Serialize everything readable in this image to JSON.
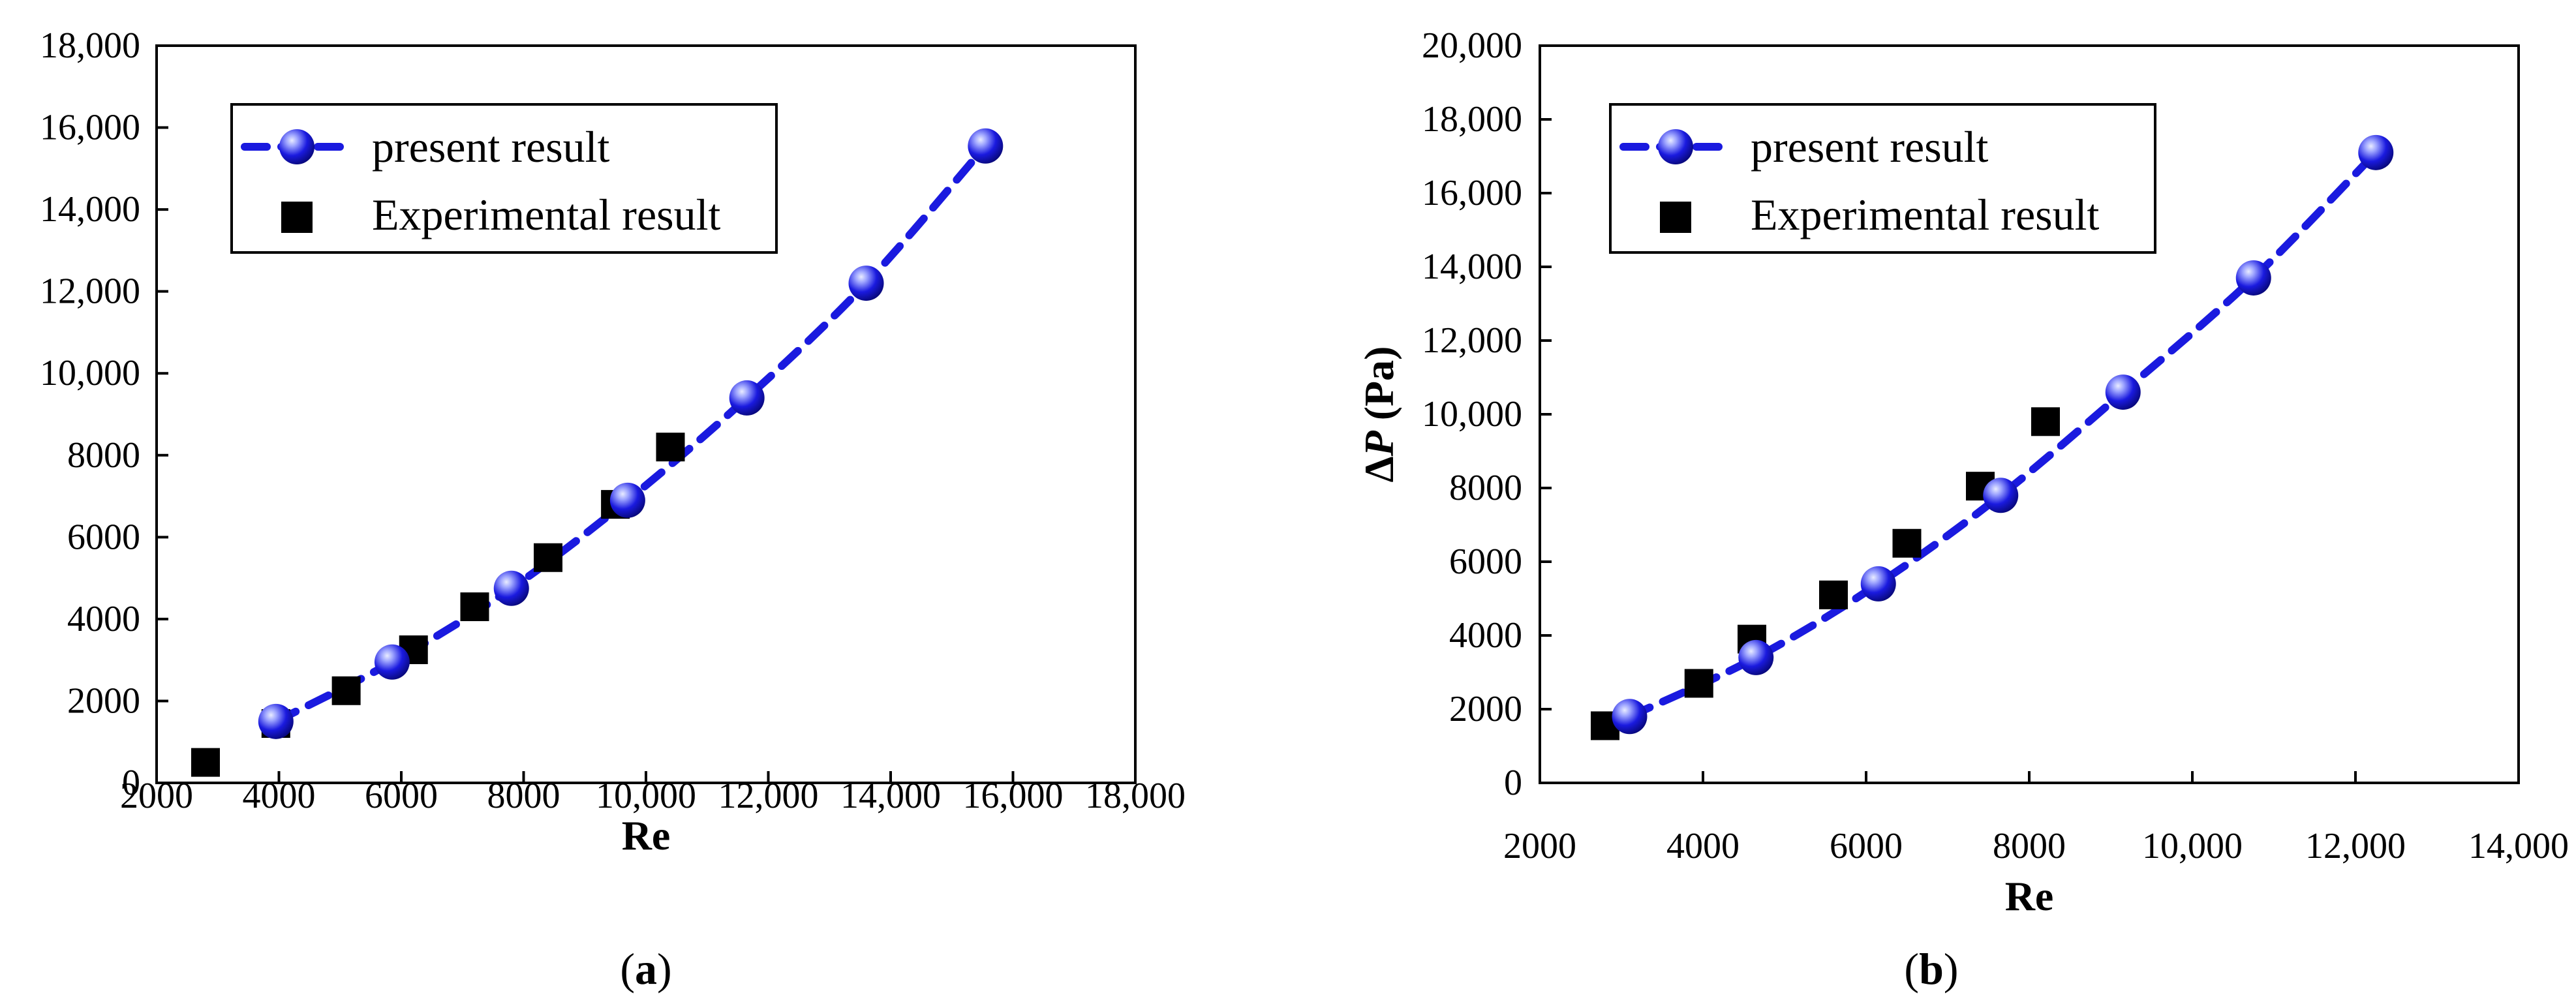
{
  "colors": {
    "present": "#1a1adf",
    "present_highlight": "#9fa6ff",
    "experimental": "#000000"
  },
  "panels": [
    {
      "label_open": "(",
      "label_letter": "a",
      "label_close": ")",
      "chart_data": {
        "type": "scatter",
        "title": "",
        "xlabel": "Re",
        "ylabel": "",
        "xlim": [
          2000,
          18000
        ],
        "ylim": [
          0,
          18000
        ],
        "xticks": [
          2000,
          4000,
          6000,
          8000,
          10000,
          12000,
          14000,
          16000,
          18000
        ],
        "xtick_labels": [
          "2000",
          "4000",
          "6000",
          "8000",
          "10,000",
          "12,000",
          "14,000",
          "16,000",
          "18,000"
        ],
        "yticks": [
          0,
          2000,
          4000,
          6000,
          8000,
          10000,
          12000,
          14000,
          16000,
          18000
        ],
        "ytick_labels": [
          "0",
          "2000",
          "4000",
          "6000",
          "8000",
          "10,000",
          "12,000",
          "14,000",
          "16,000",
          "18,000"
        ],
        "legend_position": "top-left",
        "series": [
          {
            "name": "present result",
            "style": "dashed line with sphere markers",
            "points": [
              [
                3950,
                1500
              ],
              [
                5850,
                2950
              ],
              [
                7800,
                4750
              ],
              [
                9700,
                6900
              ],
              [
                11650,
                9400
              ],
              [
                13600,
                12200
              ],
              [
                15550,
                15550
              ]
            ]
          },
          {
            "name": "Experimental result",
            "style": "square markers",
            "points": [
              [
                2800,
                500
              ],
              [
                3950,
                1450
              ],
              [
                5100,
                2250
              ],
              [
                6200,
                3250
              ],
              [
                7200,
                4300
              ],
              [
                8400,
                5500
              ],
              [
                9500,
                6800
              ],
              [
                10400,
                8200
              ]
            ]
          }
        ]
      }
    },
    {
      "label_open": "(",
      "label_letter": "b",
      "label_close": ")",
      "chart_data": {
        "type": "scatter",
        "title": "",
        "xlabel": "Re",
        "ylabel_prefix": "Δ",
        "ylabel_var": "P",
        "ylabel_suffix": " (Pa)",
        "xlim": [
          2000,
          14000
        ],
        "ylim": [
          0,
          20000
        ],
        "xticks": [
          2000,
          4000,
          6000,
          8000,
          10000,
          12000,
          14000
        ],
        "xtick_labels": [
          "2000",
          "4000",
          "6000",
          "8000",
          "10,000",
          "12,000",
          "14,000"
        ],
        "yticks": [
          0,
          2000,
          4000,
          6000,
          8000,
          10000,
          12000,
          14000,
          16000,
          18000,
          20000
        ],
        "ytick_labels": [
          "0",
          "2000",
          "4000",
          "6000",
          "8000",
          "10,000",
          "12,000",
          "14,000",
          "16,000",
          "18,000",
          "20,000"
        ],
        "legend_position": "top-left",
        "series": [
          {
            "name": "present result",
            "style": "dashed line with sphere markers",
            "points": [
              [
                3100,
                1800
              ],
              [
                4650,
                3400
              ],
              [
                6150,
                5400
              ],
              [
                7650,
                7800
              ],
              [
                9150,
                10600
              ],
              [
                10750,
                13700
              ],
              [
                12250,
                17100
              ]
            ]
          },
          {
            "name": "Experimental result",
            "style": "square markers",
            "points": [
              [
                2800,
                1550
              ],
              [
                3950,
                2700
              ],
              [
                4600,
                3900
              ],
              [
                5600,
                5100
              ],
              [
                6500,
                6500
              ],
              [
                7400,
                8050
              ],
              [
                8200,
                9800
              ]
            ]
          }
        ]
      }
    }
  ]
}
